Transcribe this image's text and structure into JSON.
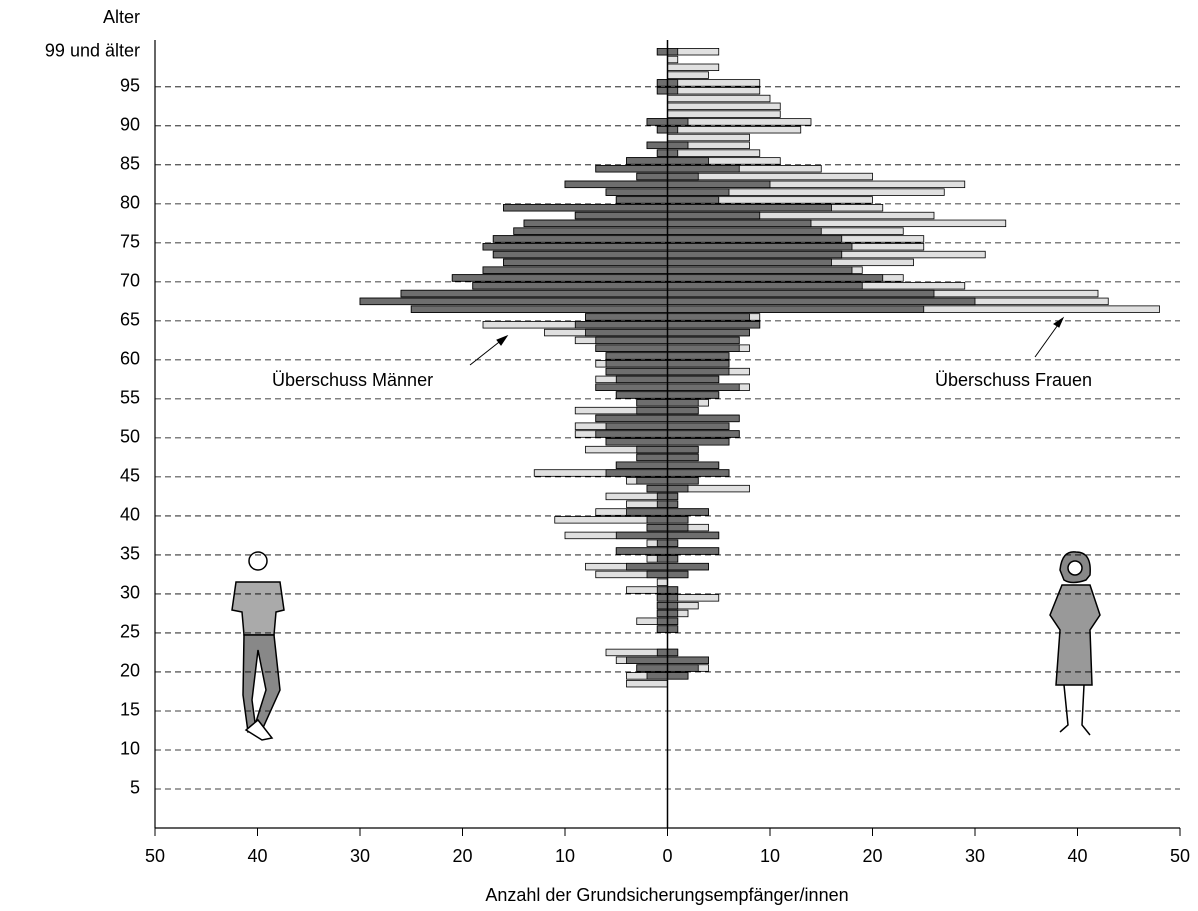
{
  "chart_data": {
    "type": "pyramid",
    "y_title": "Alter",
    "x_title": "Anzahl der Grundsicherungsempfänger/innen",
    "ages": [
      18,
      19,
      20,
      21,
      22,
      23,
      24,
      25,
      26,
      27,
      28,
      29,
      30,
      31,
      32,
      33,
      34,
      35,
      36,
      37,
      38,
      39,
      40,
      41,
      42,
      43,
      44,
      45,
      46,
      47,
      48,
      49,
      50,
      51,
      52,
      53,
      54,
      55,
      56,
      57,
      58,
      59,
      60,
      61,
      62,
      63,
      64,
      65,
      66,
      67,
      68,
      69,
      70,
      71,
      72,
      73,
      74,
      75,
      76,
      77,
      78,
      79,
      80,
      81,
      82,
      83,
      84,
      85,
      86,
      87,
      88,
      89,
      90,
      91,
      92,
      93,
      94,
      95,
      96,
      97,
      98,
      99
    ],
    "series": [
      {
        "color": "#e0e0e0",
        "values": [
          4,
          4,
          3,
          5,
          6,
          0,
          0,
          1,
          3,
          1,
          1,
          1,
          4,
          1,
          7,
          8,
          2,
          5,
          2,
          10,
          2,
          11,
          7,
          4,
          6,
          2,
          4,
          13,
          5,
          3,
          8,
          6,
          9,
          9,
          7,
          9,
          3,
          5,
          7,
          7,
          6,
          7,
          6,
          7,
          9,
          12,
          18,
          8,
          25,
          30,
          26,
          19,
          21,
          18,
          16,
          17,
          18,
          17,
          15,
          14,
          9,
          16,
          5,
          6,
          10,
          3,
          7,
          4,
          1,
          2,
          0,
          1,
          2,
          0,
          0,
          0,
          1,
          1,
          0,
          0,
          0,
          1
        ]
      },
      {
        "color": "#e0e0e0",
        "values": [
          0,
          2,
          4,
          4,
          1,
          0,
          0,
          1,
          1,
          2,
          3,
          5,
          1,
          0,
          2,
          4,
          1,
          5,
          1,
          5,
          4,
          2,
          4,
          1,
          1,
          8,
          3,
          6,
          5,
          3,
          3,
          6,
          7,
          6,
          7,
          3,
          4,
          5,
          8,
          5,
          8,
          6,
          6,
          8,
          7,
          8,
          9,
          9,
          48,
          43,
          42,
          29,
          23,
          19,
          24,
          31,
          25,
          25,
          23,
          33,
          26,
          21,
          20,
          27,
          29,
          20,
          15,
          11,
          9,
          8,
          8,
          13,
          14,
          11,
          11,
          10,
          9,
          9,
          4,
          5,
          1,
          5
        ]
      }
    ],
    "overlap_color": "#6e6e6e",
    "xlim": [
      -50,
      50
    ],
    "xticks": [
      {
        "value": -50,
        "label": "50"
      },
      {
        "value": -40,
        "label": "40"
      },
      {
        "value": -30,
        "label": "30"
      },
      {
        "value": -20,
        "label": "20"
      },
      {
        "value": -10,
        "label": "10"
      },
      0,
      10,
      20,
      30,
      40,
      50
    ],
    "ylim": [
      0,
      101
    ],
    "yticks": [
      5,
      10,
      15,
      20,
      25,
      30,
      35,
      40,
      45,
      50,
      55,
      60,
      65,
      70,
      75,
      80,
      85,
      90,
      95,
      {
        "value": 99.5,
        "label": "99 und älter"
      }
    ],
    "grid": true,
    "annotations": [
      {
        "text": "Überschuss Männer"
      },
      {
        "text": "Überschuss Frauen"
      }
    ]
  }
}
